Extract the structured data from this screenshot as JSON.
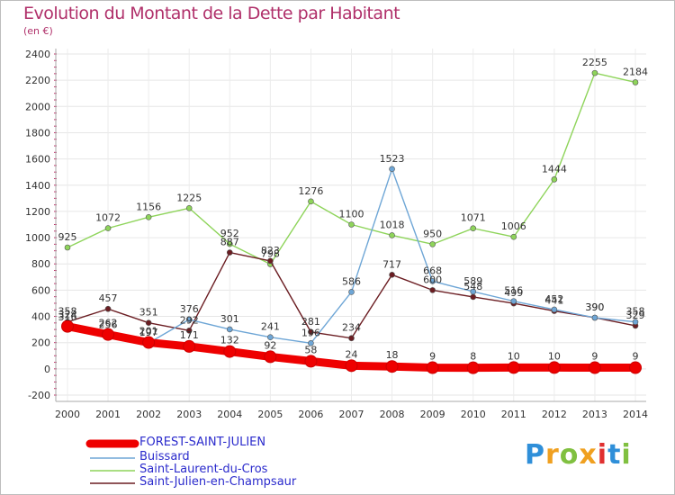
{
  "chart_data": {
    "type": "line",
    "title": "Evolution du Montant de la Dette par Habitant",
    "subtitle": "(en €)",
    "x": [
      "2000",
      "2001",
      "2002",
      "2003",
      "2004",
      "2005",
      "2006",
      "2007",
      "2008",
      "2009",
      "2010",
      "2011",
      "2012",
      "2013",
      "2014"
    ],
    "ylim": [
      -200,
      2400
    ],
    "yticks": [
      -200,
      0,
      200,
      400,
      600,
      800,
      1000,
      1200,
      1400,
      1600,
      1800,
      2000,
      2200,
      2400
    ],
    "grid": true,
    "legend_position": "bottom-left",
    "series": [
      {
        "name": "FOREST-SAINT-JULIEN",
        "color": "#ee0000",
        "values": [
          324,
          262,
          201,
          171,
          132,
          92,
          58,
          24,
          18,
          9,
          8,
          10,
          10,
          9,
          9
        ],
        "labels": [
          "324",
          "262",
          "201",
          "171",
          "132",
          "92",
          "58",
          "24",
          "18",
          "9",
          "8",
          "10",
          "10",
          "9",
          "9"
        ]
      },
      {
        "name": "Buissard",
        "color": "#6ea6d6",
        "values": [
          316,
          256,
          197,
          376,
          301,
          241,
          196,
          586,
          1523,
          668,
          589,
          516,
          452,
          390,
          358
        ],
        "labels": [
          "316",
          "256",
          "197",
          "376",
          "301",
          "241",
          "196",
          "586",
          "1523",
          "668",
          "589",
          "516",
          "452",
          "390",
          "358"
        ]
      },
      {
        "name": "Saint-Laurent-du-Cros",
        "color": "#8ed45a",
        "values": [
          925,
          1072,
          1156,
          1225,
          952,
          798,
          1276,
          1100,
          1018,
          950,
          1071,
          1006,
          1444,
          2255,
          2184
        ],
        "labels": [
          "925",
          "1072",
          "1156",
          "1225",
          "952",
          "798",
          "1276",
          "1100",
          "1018",
          "950",
          "1071",
          "1006",
          "1444",
          "2255",
          "2184"
        ]
      },
      {
        "name": "Saint-Julien-en-Champsaur",
        "color": "#6b1d22",
        "values": [
          358,
          457,
          351,
          292,
          887,
          823,
          281,
          234,
          717,
          600,
          548,
          499,
          441,
          390,
          329
        ],
        "labels": [
          "358",
          "457",
          "351",
          "292",
          "887",
          "823",
          "281",
          "234",
          "717",
          "600",
          "548",
          "499",
          "441",
          "390",
          "329"
        ]
      }
    ]
  },
  "logo": {
    "text": "Proxiti",
    "letters": [
      "P",
      "r",
      "o",
      "x",
      "i",
      "t",
      "i"
    ],
    "colors": [
      "#2f8fd9",
      "#f0a020",
      "#80c040",
      "#f0a020",
      "#e03030",
      "#2f8fd9",
      "#80c040"
    ]
  }
}
